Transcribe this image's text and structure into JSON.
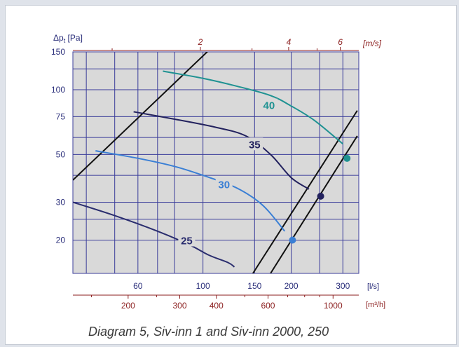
{
  "caption": "Diagram 5, Siv-inn 1 and Siv-inn 2000, 250",
  "colors": {
    "plot_bg": "#d9d9d9",
    "grid": "#3a3c9a",
    "left_axis_text": "#2a2e7a",
    "top_axis_text": "#8b1e1e",
    "bottom_axis_text": "#2a2e7a",
    "bottom_axis2_text": "#8b1e1e"
  },
  "chart_data": {
    "type": "line",
    "title": "",
    "ylabel_prefix": "Δp",
    "ylabel_sub": "t",
    "ylabel_unit": "[Pa]",
    "y_scale": "log",
    "ylim": [
      14,
      150
    ],
    "yticks": [
      20,
      30,
      50,
      75,
      100,
      150
    ],
    "y_gridlines": [
      20,
      25,
      30,
      40,
      50,
      60,
      75,
      100,
      125,
      150
    ],
    "x_scale": "log",
    "xlim": [
      36,
      340
    ],
    "x_unit": "[l/s]",
    "xticks": [
      60,
      100,
      150,
      200,
      300
    ],
    "x_gridlines": [
      40,
      50,
      60,
      70,
      80,
      100,
      150,
      200,
      250,
      300
    ],
    "x2_unit": "[m³/h]",
    "x2ticks": [
      200,
      300,
      400,
      600,
      1000
    ],
    "x2_minor": [
      150,
      250,
      500,
      700,
      800,
      900
    ],
    "top_unit": "[m/s]",
    "top_ticks": [
      2,
      4,
      6
    ],
    "top_tick_positions_lps": [
      98,
      196,
      294
    ],
    "top_minor_lps": [
      49,
      147,
      245,
      343
    ],
    "grid": true,
    "noise_curves": [
      {
        "label": "25",
        "color": "#2a2d6e",
        "points": [
          [
            36,
            30
          ],
          [
            50,
            26
          ],
          [
            70,
            22
          ],
          [
            90,
            19
          ],
          [
            105,
            17
          ],
          [
            122,
            15.7
          ],
          [
            128,
            15
          ]
        ],
        "label_at": [
          88,
          20
        ]
      },
      {
        "label": "30",
        "color": "#3a7fd5",
        "points": [
          [
            43,
            52
          ],
          [
            60,
            48
          ],
          [
            80,
            44
          ],
          [
            100,
            40
          ],
          [
            130,
            35
          ],
          [
            160,
            29
          ],
          [
            190,
            22
          ]
        ],
        "label_at": [
          118,
          36.5
        ]
      },
      {
        "label": "35",
        "color": "#23225e",
        "points": [
          [
            58,
            79
          ],
          [
            80,
            73
          ],
          [
            110,
            67
          ],
          [
            140,
            61
          ],
          [
            170,
            50
          ],
          [
            200,
            39
          ],
          [
            230,
            34.5
          ]
        ],
        "label_at": [
          150,
          56
        ]
      },
      {
        "label": "40",
        "color": "#1f9292",
        "points": [
          [
            73,
            122
          ],
          [
            100,
            113
          ],
          [
            130,
            104
          ],
          [
            170,
            94
          ],
          [
            200,
            84
          ],
          [
            240,
            72
          ],
          [
            300,
            56
          ]
        ],
        "label_at": [
          168,
          85
        ]
      }
    ],
    "system_lines": [
      {
        "color": "#111111",
        "points": [
          [
            36,
            38
          ],
          [
            106,
            155
          ]
        ]
      },
      {
        "color": "#111111",
        "points": [
          [
            148,
            14
          ],
          [
            336,
            80
          ]
        ]
      },
      {
        "color": "#111111",
        "points": [
          [
            170,
            14
          ],
          [
            336,
            61
          ]
        ]
      }
    ],
    "operating_points": [
      {
        "color": "#3a7fd5",
        "x": 202,
        "y": 20
      },
      {
        "color": "#23225e",
        "x": 252,
        "y": 32
      },
      {
        "color": "#1f9292",
        "x": 310,
        "y": 48
      }
    ]
  }
}
